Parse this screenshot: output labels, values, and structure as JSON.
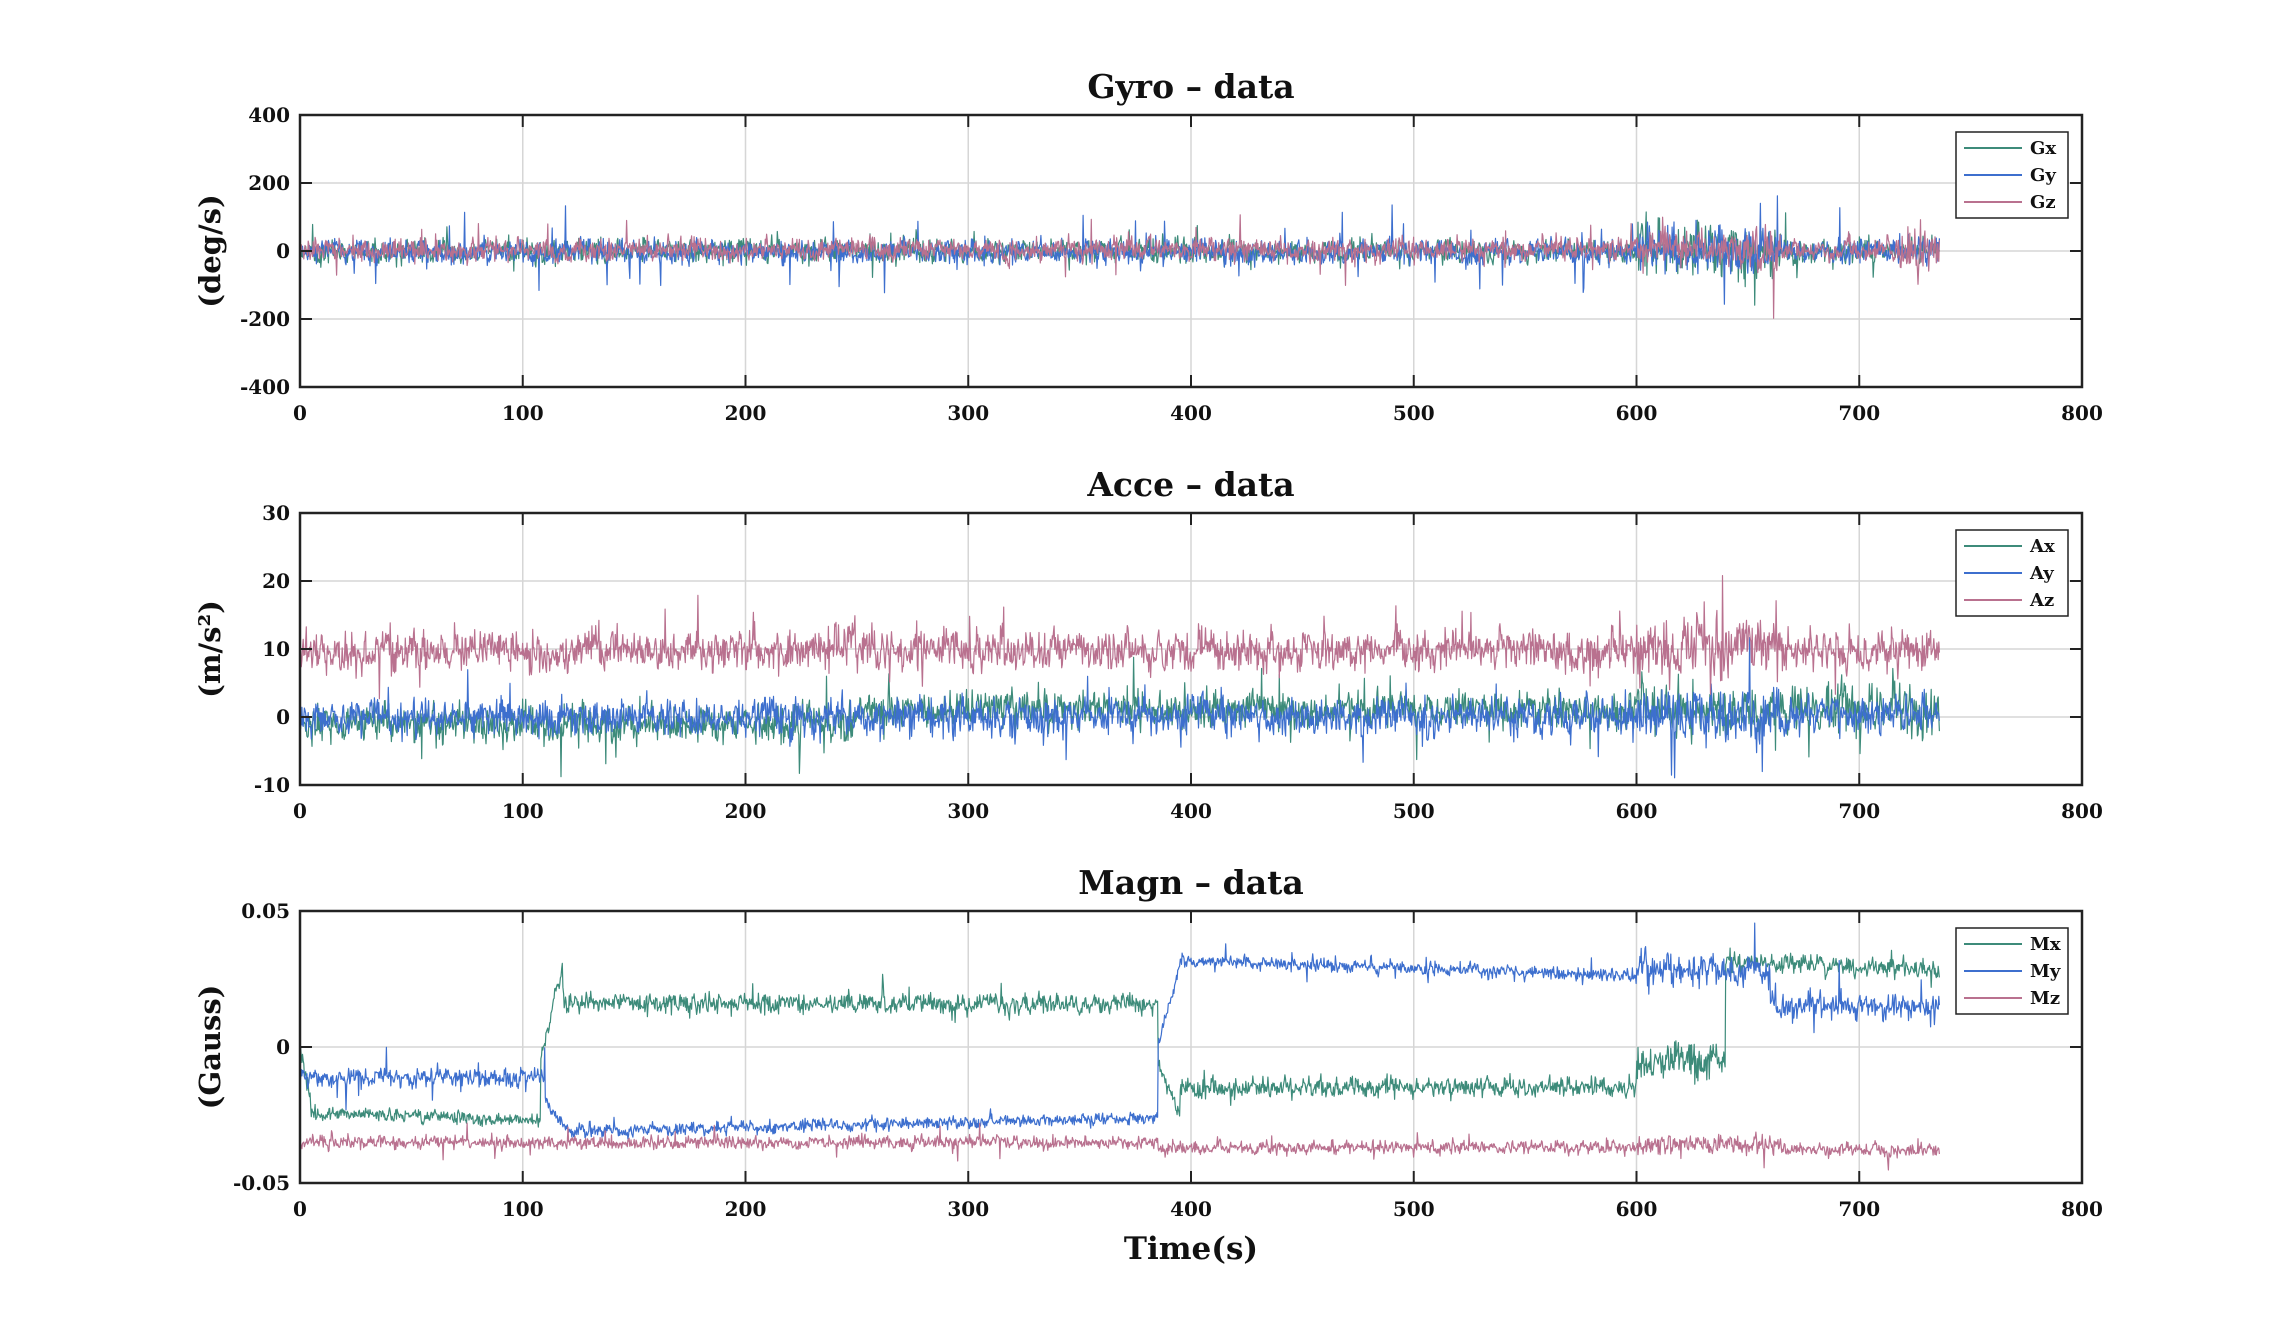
{
  "figure": {
    "xlabel": "Time(s)",
    "colors": {
      "s1": "#3d8b7a",
      "s2": "#3d6fce",
      "s3": "#b9718f",
      "grid": "#d6d6d6",
      "axis": "#222222"
    }
  },
  "chart_data": [
    {
      "type": "line",
      "title": "Gyro – data",
      "ylabel": "(deg/s)",
      "xlim": [
        0,
        800
      ],
      "ylim": [
        -400,
        400
      ],
      "xticks": [
        0,
        100,
        200,
        300,
        400,
        500,
        600,
        700,
        800
      ],
      "yticks": [
        -400,
        -200,
        0,
        200,
        400
      ],
      "ytick_labels": [
        "-400",
        "-200",
        "0",
        "200",
        "400"
      ],
      "grid": true,
      "legend": "top-right",
      "duration": 736,
      "series": [
        {
          "name": "Gx",
          "color": "#3d8b7a",
          "segments": [
            {
              "x": [
                0,
                600
              ],
              "mean": 0,
              "amp": 28,
              "drift": 0,
              "spikes": 60
            },
            {
              "x": [
                600,
                665
              ],
              "mean": 0,
              "amp": 65,
              "drift": 0,
              "spikes": 210
            },
            {
              "x": [
                665,
                736
              ],
              "mean": 0,
              "amp": 30,
              "drift": 0,
              "spikes": 120
            }
          ]
        },
        {
          "name": "Gy",
          "color": "#3d6fce",
          "segments": [
            {
              "x": [
                0,
                600
              ],
              "mean": -2,
              "amp": 30,
              "drift": 0,
              "spikes": 120
            },
            {
              "x": [
                600,
                665
              ],
              "mean": 0,
              "amp": 60,
              "drift": 0,
              "spikes": 190
            },
            {
              "x": [
                665,
                736
              ],
              "mean": 0,
              "amp": 30,
              "drift": 0,
              "spikes": 190
            }
          ]
        },
        {
          "name": "Gz",
          "color": "#b9718f",
          "segments": [
            {
              "x": [
                0,
                600
              ],
              "mean": 5,
              "amp": 28,
              "drift": 0,
              "spikes": 95
            },
            {
              "x": [
                600,
                665
              ],
              "mean": 5,
              "amp": 45,
              "drift": 0,
              "spikes": 200
            },
            {
              "x": [
                665,
                720
              ],
              "mean": 5,
              "amp": 28,
              "drift": 0,
              "spikes": 60
            },
            {
              "x": [
                720,
                736
              ],
              "mean": 0,
              "amp": 60,
              "drift": 0,
              "spikes": 270
            }
          ]
        }
      ]
    },
    {
      "type": "line",
      "title": "Acce – data",
      "ylabel": "(m/s²)",
      "xlim": [
        0,
        800
      ],
      "ylim": [
        -10,
        30
      ],
      "xticks": [
        0,
        100,
        200,
        300,
        400,
        500,
        600,
        700,
        800
      ],
      "yticks": [
        -10,
        0,
        10,
        20,
        30
      ],
      "ytick_labels": [
        "-10",
        "0",
        "10",
        "20",
        "30"
      ],
      "grid": true,
      "legend": "top-right",
      "duration": 736,
      "series": [
        {
          "name": "Ax",
          "color": "#3d8b7a",
          "segments": [
            {
              "x": [
                0,
                250
              ],
              "mean": -1,
              "amp": 2.2,
              "drift": 0,
              "spikes": 6
            },
            {
              "x": [
                250,
                600
              ],
              "mean": 1,
              "amp": 2.2,
              "drift": 0,
              "spikes": 6
            },
            {
              "x": [
                600,
                736
              ],
              "mean": 1,
              "amp": 3,
              "drift": 0,
              "spikes": 7
            }
          ]
        },
        {
          "name": "Ay",
          "color": "#3d6fce",
          "segments": [
            {
              "x": [
                0,
                600
              ],
              "mean": 0,
              "amp": 2.2,
              "drift": 0,
              "spikes": 5
            },
            {
              "x": [
                600,
                665
              ],
              "mean": 0,
              "amp": 3.5,
              "drift": 0,
              "spikes": 10
            },
            {
              "x": [
                665,
                736
              ],
              "mean": 0.5,
              "amp": 2.2,
              "drift": 0,
              "spikes": 6
            }
          ]
        },
        {
          "name": "Az",
          "color": "#b9718f",
          "segments": [
            {
              "x": [
                0,
                600
              ],
              "mean": 9.8,
              "amp": 2.4,
              "drift": 0,
              "spikes": 5.5
            },
            {
              "x": [
                600,
                665
              ],
              "mean": 10,
              "amp": 3.5,
              "drift": 0,
              "spikes": 12
            },
            {
              "x": [
                665,
                736
              ],
              "mean": 9.8,
              "amp": 2.4,
              "drift": 0,
              "spikes": 6
            }
          ]
        }
      ]
    },
    {
      "type": "line",
      "title": "Magn – data",
      "ylabel": "(Gauss)",
      "xlim": [
        0,
        800
      ],
      "ylim": [
        -0.05,
        0.05
      ],
      "xticks": [
        0,
        100,
        200,
        300,
        400,
        500,
        600,
        700,
        800
      ],
      "yticks": [
        -0.05,
        0,
        0.05
      ],
      "ytick_labels": [
        "-0.05",
        "0",
        "0.05"
      ],
      "grid": true,
      "legend": "top-right",
      "duration": 736,
      "series": [
        {
          "name": "Mx",
          "color": "#3d8b7a",
          "segments": [
            {
              "x": [
                0,
                5
              ],
              "mean": 0.0,
              "amp": 0.003,
              "drift": -0.02,
              "spikes": 0.006
            },
            {
              "x": [
                5,
                108
              ],
              "mean": -0.024,
              "amp": 0.002,
              "drift": -0.003,
              "spikes": 0.003
            },
            {
              "x": [
                108,
                118
              ],
              "mean": -0.005,
              "amp": 0.002,
              "drift": 0.035,
              "spikes": 0.003
            },
            {
              "x": [
                118,
                385
              ],
              "mean": 0.016,
              "amp": 0.003,
              "drift": 0.0,
              "spikes": 0.008
            },
            {
              "x": [
                385,
                395
              ],
              "mean": -0.005,
              "amp": 0.002,
              "drift": -0.02,
              "spikes": 0.004
            },
            {
              "x": [
                395,
                600
              ],
              "mean": -0.015,
              "amp": 0.003,
              "drift": 0.0,
              "spikes": 0.007
            },
            {
              "x": [
                600,
                640
              ],
              "mean": -0.005,
              "amp": 0.006,
              "drift": 0.0,
              "spikes": 0.02
            },
            {
              "x": [
                640,
                736
              ],
              "mean": 0.032,
              "amp": 0.003,
              "drift": -0.004,
              "spikes": 0.008
            }
          ]
        },
        {
          "name": "My",
          "color": "#3d6fce",
          "segments": [
            {
              "x": [
                0,
                110
              ],
              "mean": -0.011,
              "amp": 0.003,
              "drift": 0.0,
              "spikes": 0.012
            },
            {
              "x": [
                110,
                120
              ],
              "mean": -0.02,
              "amp": 0.002,
              "drift": -0.01,
              "spikes": 0.003
            },
            {
              "x": [
                120,
                385
              ],
              "mean": -0.031,
              "amp": 0.002,
              "drift": 0.005,
              "spikes": 0.005
            },
            {
              "x": [
                385,
                395
              ],
              "mean": 0.0,
              "amp": 0.002,
              "drift": 0.03,
              "spikes": 0.004
            },
            {
              "x": [
                395,
                600
              ],
              "mean": 0.032,
              "amp": 0.002,
              "drift": -0.006,
              "spikes": 0.006
            },
            {
              "x": [
                600,
                660
              ],
              "mean": 0.028,
              "amp": 0.005,
              "drift": 0.0,
              "spikes": 0.02
            },
            {
              "x": [
                660,
                736
              ],
              "mean": 0.015,
              "amp": 0.004,
              "drift": 0.0,
              "spikes": 0.015
            }
          ]
        },
        {
          "name": "Mz",
          "color": "#b9718f",
          "segments": [
            {
              "x": [
                0,
                385
              ],
              "mean": -0.035,
              "amp": 0.002,
              "drift": 0.0,
              "spikes": 0.006
            },
            {
              "x": [
                385,
                600
              ],
              "mean": -0.037,
              "amp": 0.002,
              "drift": 0.0,
              "spikes": 0.005
            },
            {
              "x": [
                600,
                665
              ],
              "mean": -0.036,
              "amp": 0.003,
              "drift": 0.0,
              "spikes": 0.01
            },
            {
              "x": [
                665,
                736
              ],
              "mean": -0.038,
              "amp": 0.002,
              "drift": 0.0,
              "spikes": 0.006
            }
          ]
        }
      ]
    }
  ]
}
